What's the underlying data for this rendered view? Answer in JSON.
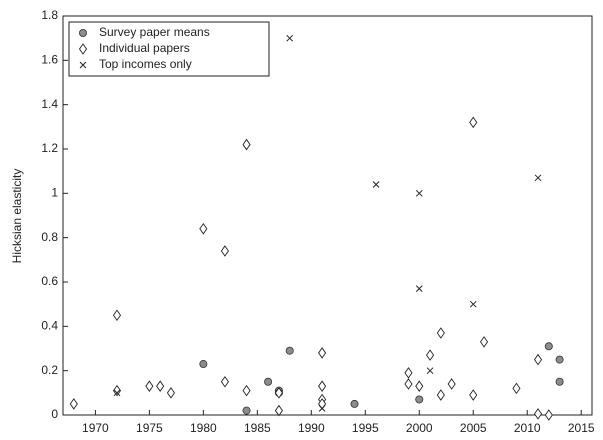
{
  "chart_data": {
    "type": "scatter",
    "y_label": "Hicksian elasticity",
    "xlim": [
      1967,
      2016
    ],
    "xticks": [
      1970,
      1975,
      1980,
      1985,
      1990,
      1995,
      2000,
      2005,
      2010,
      2015
    ],
    "ylim": [
      0,
      1.8
    ],
    "yticks": [
      0,
      0.2,
      0.4,
      0.6,
      0.8,
      1,
      1.2,
      1.4,
      1.6,
      1.8
    ],
    "legend": "top-left",
    "series": [
      {
        "name": "Survey paper means",
        "marker": "circle",
        "color": "#8c8c8c",
        "x": [
          1980,
          1984,
          1986,
          1987,
          1987,
          1988,
          1994,
          2000,
          2012,
          2013,
          2013
        ],
        "values": [
          0.23,
          0.02,
          0.15,
          0.11,
          0.1,
          0.29,
          0.05,
          0.07,
          0.31,
          0.25,
          0.15
        ]
      },
      {
        "name": "Individual papers",
        "marker": "diamond",
        "color": "#ffffff",
        "x": [
          1968,
          1972,
          1972,
          1975,
          1976,
          1977,
          1980,
          1982,
          1982,
          1984,
          1984,
          1987,
          1987,
          1991,
          1991,
          1991,
          1991,
          1999,
          1999,
          2000,
          2001,
          2002,
          2002,
          2003,
          2005,
          2005,
          2006,
          2009,
          2011,
          2011,
          2012
        ],
        "values": [
          0.05,
          0.45,
          0.11,
          0.13,
          0.13,
          0.1,
          0.84,
          0.74,
          0.15,
          1.22,
          0.11,
          0.02,
          0.1,
          0.28,
          0.13,
          0.07,
          0.05,
          0.19,
          0.14,
          0.13,
          0.27,
          0.37,
          0.09,
          0.14,
          1.32,
          0.09,
          0.33,
          0.12,
          0.25,
          0.005,
          0
        ]
      },
      {
        "name": "Top incomes only",
        "marker": "cross",
        "color": "#222222",
        "x": [
          1972,
          1991,
          1996,
          2000,
          2000,
          2001,
          2005,
          2011,
          1988
        ],
        "values": [
          0.1,
          0.03,
          1.04,
          1.0,
          0.57,
          0.2,
          0.5,
          1.07,
          1.7
        ]
      }
    ]
  }
}
